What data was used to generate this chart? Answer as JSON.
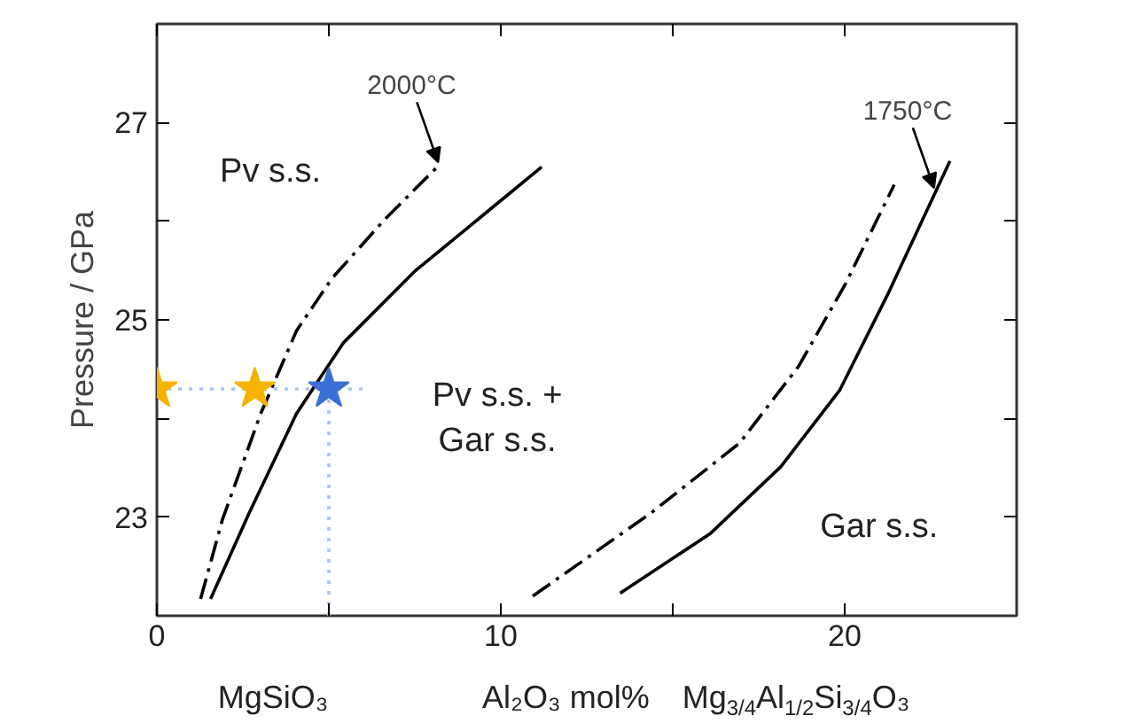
{
  "chart_data": {
    "type": "line",
    "xlabel": "Al₂O₃ mol%",
    "ylabel": "Pressure / GPa",
    "xlim": [
      0,
      25
    ],
    "ylim": [
      22,
      28
    ],
    "xticks": [
      0,
      {
        "value": 5,
        "label": null
      },
      10,
      {
        "value": 15,
        "label": null
      },
      20
    ],
    "yticks": [
      23,
      {
        "value": 24,
        "label": null
      },
      25,
      {
        "value": 26,
        "label": null
      },
      27
    ],
    "grid": false,
    "series": [
      {
        "color": "#000000",
        "line_style": "dashdot",
        "x": [
          1.27,
          1.91,
          3.02,
          4.06,
          5.09,
          6.63,
          8.18
        ],
        "values": [
          22.17,
          22.98,
          24.05,
          24.89,
          25.42,
          26.02,
          26.56
        ]
      },
      {
        "color": "#000000",
        "line_style": "solid",
        "x": [
          1.56,
          2.68,
          4.06,
          5.43,
          7.49,
          9.55,
          11.19
        ],
        "values": [
          22.17,
          23.04,
          24.05,
          24.77,
          25.49,
          26.08,
          26.55
        ]
      },
      {
        "color": "#000000",
        "line_style": "dashdot",
        "x": [
          10.93,
          14.36,
          16.94,
          18.66,
          20.03,
          21.44
        ],
        "values": [
          22.2,
          23.04,
          23.75,
          24.53,
          25.37,
          26.37
        ]
      },
      {
        "color": "#000000",
        "line_style": "solid",
        "x": [
          13.47,
          16.08,
          18.14,
          19.86,
          21.24,
          22.27,
          23.06
        ],
        "values": [
          22.23,
          22.83,
          23.51,
          24.29,
          25.25,
          26.02,
          26.61
        ]
      },
      {
        "color": "#a9c6ec",
        "line_style": "dotted",
        "x": [
          0,
          6.1
        ],
        "values": [
          24.3,
          24.3
        ]
      },
      {
        "color": "#a9c6ec",
        "line_style": "dotted",
        "x": [
          5,
          5
        ],
        "values": [
          24.3,
          22
        ]
      },
      {
        "type": "scatter",
        "marker": "star",
        "colors": [
          "#f4b400",
          "#f4b400",
          "#3b6fd4"
        ],
        "x": [
          0,
          2.85,
          5
        ],
        "values": [
          24.3,
          24.3,
          24.3
        ]
      }
    ],
    "annotations": [
      {
        "text": "2000°C",
        "x": 8.18,
        "y": 26.56
      },
      {
        "text": "1750°C",
        "x": 22.6,
        "y": 26.3
      },
      "Pv s.s.",
      "Pv s.s. +\nGar s.s.",
      "Gar s.s.",
      "MgSiO₃",
      "Mg$_{3/4}$Al$_{1/2}$Si$_{3/4}$O₃"
    ]
  }
}
